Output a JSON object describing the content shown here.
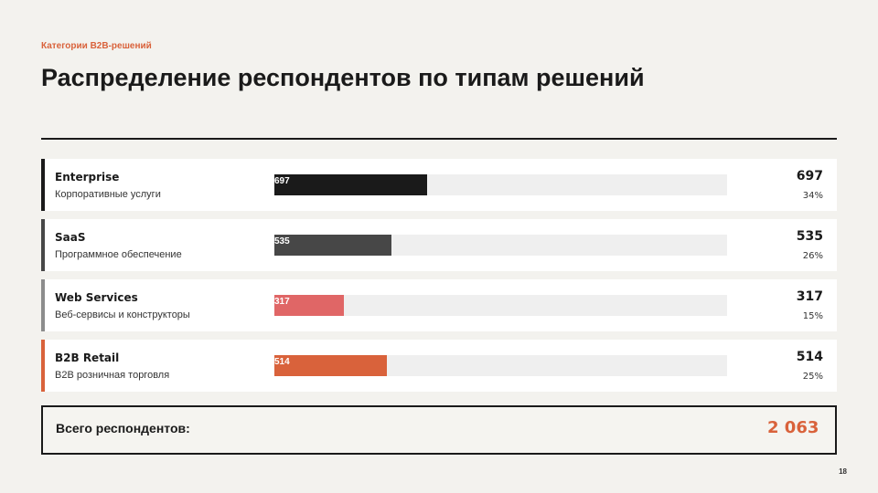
{
  "eyebrow": "Категории B2B-решений",
  "title": "Распределение респондентов по типам решений",
  "chart_data": {
    "type": "bar",
    "orientation": "horizontal",
    "categories": [
      "Enterprise",
      "SaaS",
      "Web Services",
      "B2B Retail"
    ],
    "descriptions": [
      "Корпоративные услуги",
      "Программное обеспечение",
      "Веб-сервисы и конструкторы",
      "B2B розничная торговля"
    ],
    "values": [
      697,
      535,
      317,
      514
    ],
    "value_labels": [
      "697",
      "535",
      "317",
      "514"
    ],
    "percent_labels": [
      "34%",
      "26%",
      "15%",
      "25%"
    ],
    "xlim": [
      0,
      2063
    ],
    "colors": [
      "#1a1a1a",
      "#474747",
      "#e06666",
      "#d9623b"
    ],
    "accent_colors": [
      "#1a1a1a",
      "#474747",
      "#8c8c8c",
      "#d9623b"
    ],
    "track_color": "#efefef",
    "grid": false
  },
  "total": {
    "label": "Всего респондентов:",
    "value": "2 063"
  },
  "page_number": "18"
}
